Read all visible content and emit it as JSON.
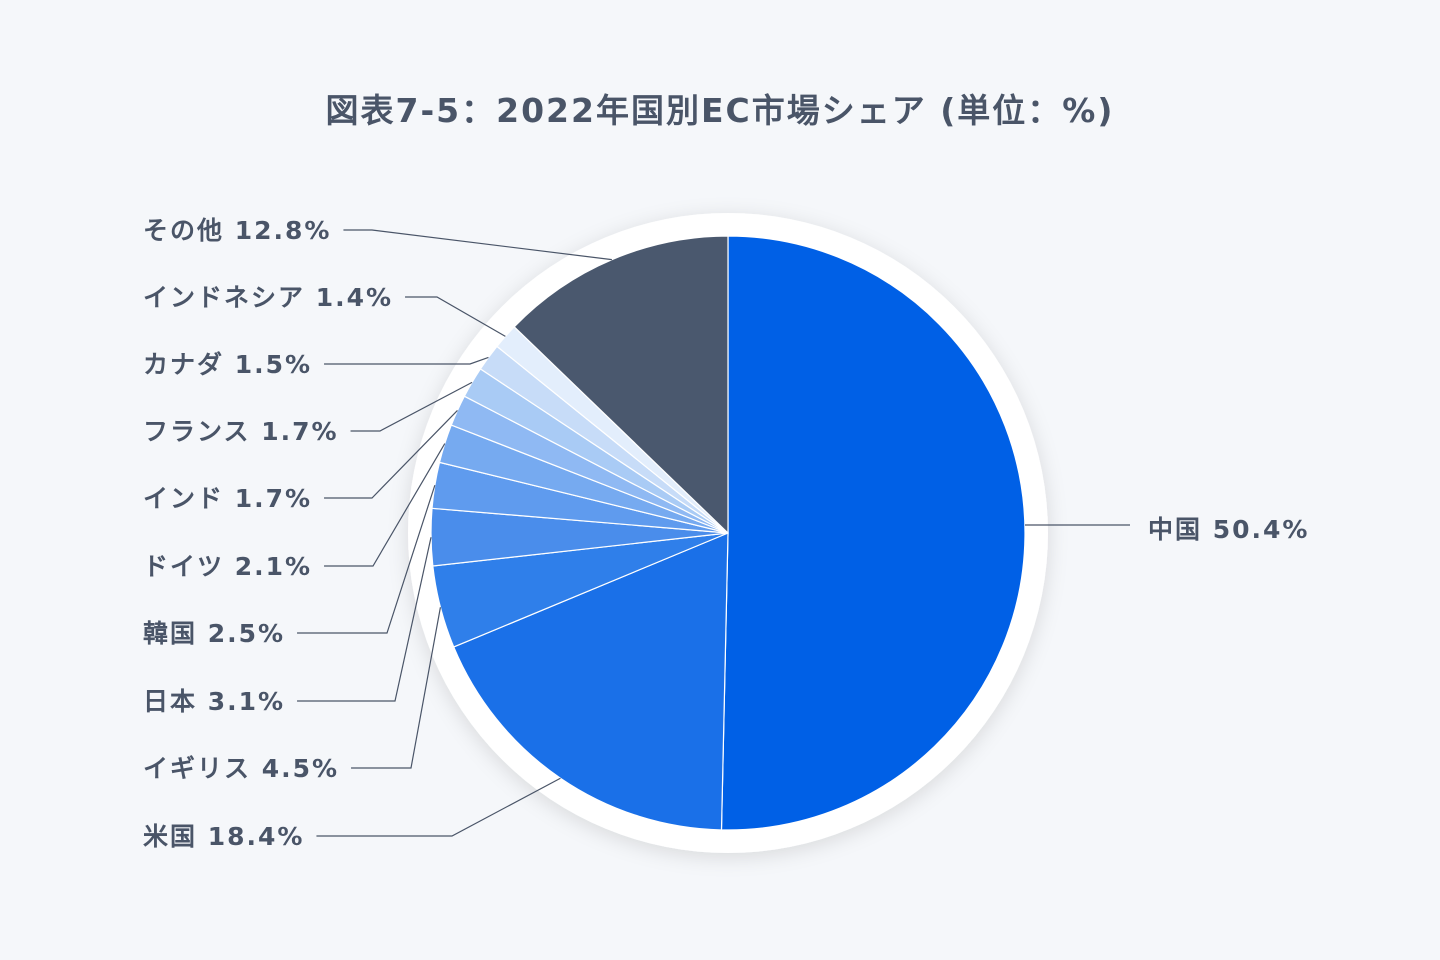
{
  "chart_data": {
    "type": "pie",
    "title": "図表7-5：2022年国別EC市場シェア (単位：%)",
    "unit": "%",
    "start": "top",
    "direction": "clockwise",
    "slices": [
      {
        "name": "中国",
        "value": 50.4,
        "label": "中国 50.4%",
        "color": "#0060e6"
      },
      {
        "name": "米国",
        "value": 18.4,
        "label": "米国 18.4%",
        "color": "#1a70e8"
      },
      {
        "name": "イギリス",
        "value": 4.5,
        "label": "イギリス 4.5%",
        "color": "#2f7fea"
      },
      {
        "name": "日本",
        "value": 3.1,
        "label": "日本 3.1%",
        "color": "#4a8deb"
      },
      {
        "name": "韓国",
        "value": 2.5,
        "label": "韓国 2.5%",
        "color": "#5f9bee"
      },
      {
        "name": "ドイツ",
        "value": 2.1,
        "label": "ドイツ 2.1%",
        "color": "#76aaf0"
      },
      {
        "name": "インド",
        "value": 1.7,
        "label": "インド 1.7%",
        "color": "#8fb9f3"
      },
      {
        "name": "フランス",
        "value": 1.7,
        "label": "フランス 1.7%",
        "color": "#a9cbf5"
      },
      {
        "name": "カナダ",
        "value": 1.5,
        "label": "カナダ 1.5%",
        "color": "#c7dcf8"
      },
      {
        "name": "インドネシア",
        "value": 1.4,
        "label": "インドネシア 1.4%",
        "color": "#e3eefc"
      },
      {
        "name": "その他",
        "value": 12.8,
        "label": "その他 12.8%",
        "color": "#4a586e"
      }
    ]
  }
}
